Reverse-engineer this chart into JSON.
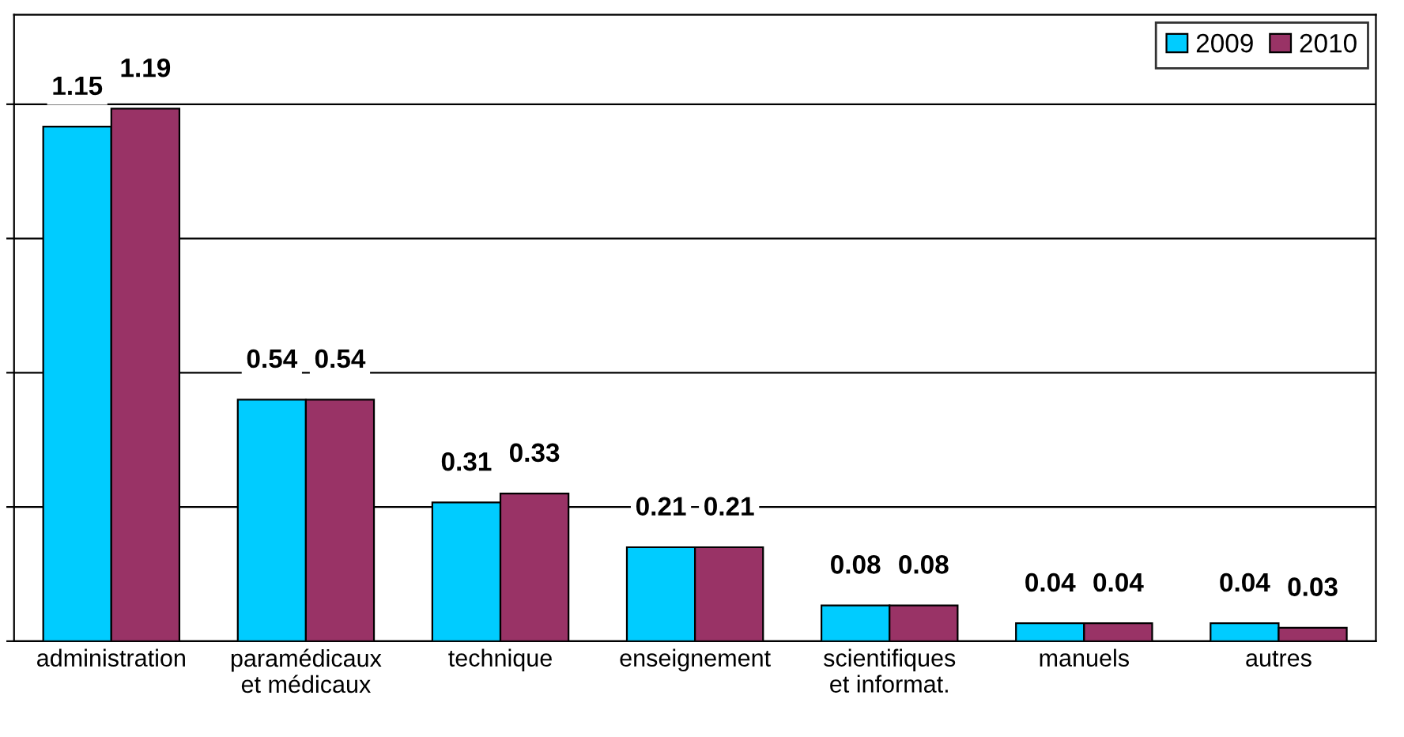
{
  "chart_data": {
    "type": "bar",
    "categories": [
      "administration",
      "paramédicaux\net médicaux",
      "technique",
      "enseignement",
      "scientifiques\net informat.",
      "manuels",
      "autres"
    ],
    "series": [
      {
        "name": "2009",
        "color": "#00ccff",
        "values": [
          1.15,
          0.54,
          0.31,
          0.21,
          0.08,
          0.04,
          0.04
        ]
      },
      {
        "name": "2010",
        "color": "#993366",
        "values": [
          1.19,
          0.54,
          0.33,
          0.21,
          0.08,
          0.04,
          0.03
        ]
      }
    ],
    "ylim": [
      0,
      1.4
    ],
    "yticks": [
      {
        "value": 0,
        "label": null
      },
      {
        "value": 0.3,
        "label": null
      },
      {
        "value": 0.6,
        "label": null
      },
      {
        "value": 0.9,
        "label": null
      },
      {
        "value": 1.2,
        "label": null
      }
    ],
    "tick_labels": "x",
    "grid": "y",
    "legend": "top right",
    "data_labels": true
  }
}
